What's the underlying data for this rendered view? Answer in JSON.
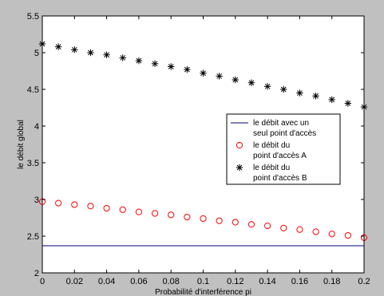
{
  "chart_data": {
    "type": "scatter",
    "title": "",
    "xlabel": "Probabilité d'interférence pi",
    "ylabel": "le débit global",
    "xlim": [
      0,
      0.2
    ],
    "ylim": [
      2,
      5.5
    ],
    "x_ticks": [
      0,
      0.02,
      0.04,
      0.06,
      0.08,
      0.1,
      0.12,
      0.14,
      0.16,
      0.18,
      0.2
    ],
    "x_tick_labels": [
      "0",
      "0.02",
      "0.04",
      "0.06",
      "0.08",
      "0.1",
      "0.12",
      "0.14",
      "0.16",
      "0.18",
      "0.2"
    ],
    "y_ticks": [
      2,
      2.5,
      3,
      3.5,
      4,
      4.5,
      5,
      5.5
    ],
    "y_tick_labels": [
      "2",
      "2.5",
      "3",
      "3.5",
      "4",
      "4.5",
      "5",
      "5.5"
    ],
    "grid": false,
    "legend_position": "right",
    "series": [
      {
        "name_lines": [
          "le débit avec un",
          "seul point d'accès"
        ],
        "marker": "line",
        "color": "#000080",
        "x": [
          0,
          0.2
        ],
        "y": [
          2.37,
          2.37
        ]
      },
      {
        "name_lines": [
          "le débit du",
          "point d'accès A"
        ],
        "marker": "circle",
        "color": "#ff0000",
        "x": [
          0,
          0.01,
          0.02,
          0.03,
          0.04,
          0.05,
          0.06,
          0.07,
          0.08,
          0.09,
          0.1,
          0.11,
          0.12,
          0.13,
          0.14,
          0.15,
          0.16,
          0.17,
          0.18,
          0.19,
          0.2
        ],
        "y": [
          2.97,
          2.95,
          2.93,
          2.91,
          2.88,
          2.86,
          2.83,
          2.81,
          2.79,
          2.76,
          2.74,
          2.71,
          2.69,
          2.66,
          2.64,
          2.61,
          2.59,
          2.56,
          2.53,
          2.51,
          2.48
        ]
      },
      {
        "name_lines": [
          "le débit du",
          "point d'accès B"
        ],
        "marker": "star",
        "color": "#000000",
        "x": [
          0,
          0.01,
          0.02,
          0.03,
          0.04,
          0.05,
          0.06,
          0.07,
          0.08,
          0.09,
          0.1,
          0.11,
          0.12,
          0.13,
          0.14,
          0.15,
          0.16,
          0.17,
          0.18,
          0.19,
          0.2
        ],
        "y": [
          5.12,
          5.08,
          5.04,
          5.0,
          4.97,
          4.93,
          4.89,
          4.85,
          4.81,
          4.77,
          4.72,
          4.68,
          4.63,
          4.59,
          4.54,
          4.5,
          4.45,
          4.41,
          4.36,
          4.31,
          4.26
        ]
      }
    ]
  }
}
